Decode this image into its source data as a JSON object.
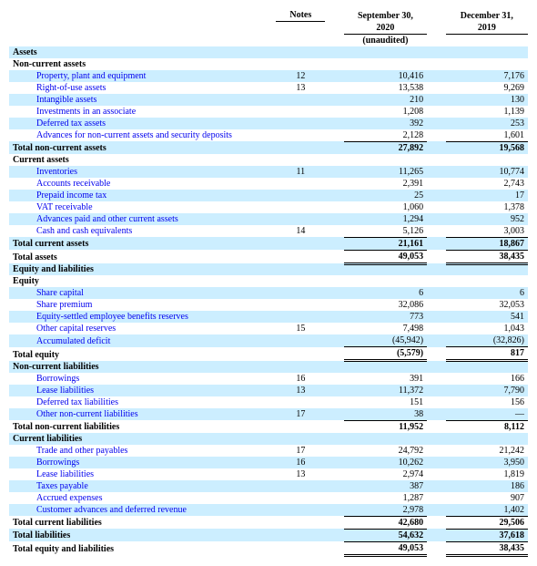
{
  "headers": {
    "notes": "Notes",
    "col1_l1": "September 30,",
    "col1_l2": "2020",
    "col1_l3": "(unaudited)",
    "col2_l1": "December 31,",
    "col2_l2": "2019"
  },
  "rows": [
    {
      "type": "section",
      "band": true,
      "label": "Assets"
    },
    {
      "type": "section",
      "label": "Non-current assets"
    },
    {
      "type": "line",
      "band": true,
      "indent": 2,
      "label": "Property, plant and equipment",
      "note": "12",
      "v1": "10,416",
      "v2": "7,176",
      "link": true
    },
    {
      "type": "line",
      "indent": 2,
      "label": "Right-of-use assets",
      "note": "13",
      "v1": "13,538",
      "v2": "9,269",
      "link": true
    },
    {
      "type": "line",
      "band": true,
      "indent": 2,
      "label": "Intangible assets",
      "v1": "210",
      "v2": "130",
      "link": true
    },
    {
      "type": "line",
      "indent": 2,
      "label": "Investments in an associate",
      "v1": "1,208",
      "v2": "1,139",
      "link": true
    },
    {
      "type": "line",
      "band": true,
      "indent": 2,
      "label": "Deferred tax assets",
      "v1": "392",
      "v2": "253",
      "link": true
    },
    {
      "type": "line",
      "indent": 2,
      "label": "Advances for non-current assets and security deposits",
      "v1": "2,128",
      "v2": "1,601",
      "link": true
    },
    {
      "type": "total",
      "band": true,
      "bold": true,
      "label": "Total non-current assets",
      "v1": "27,892",
      "v2": "19,568"
    },
    {
      "type": "section",
      "label": "Current assets"
    },
    {
      "type": "line",
      "band": true,
      "indent": 2,
      "label": "Inventories",
      "note": "11",
      "v1": "11,265",
      "v2": "10,774",
      "link": true
    },
    {
      "type": "line",
      "indent": 2,
      "label": "Accounts receivable",
      "v1": "2,391",
      "v2": "2,743",
      "link": true
    },
    {
      "type": "line",
      "band": true,
      "indent": 2,
      "label": "Prepaid income tax",
      "v1": "25",
      "v2": "17",
      "link": true
    },
    {
      "type": "line",
      "indent": 2,
      "label": "VAT receivable",
      "v1": "1,060",
      "v2": "1,378",
      "link": true
    },
    {
      "type": "line",
      "band": true,
      "indent": 2,
      "label": "Advances paid and other current assets",
      "v1": "1,294",
      "v2": "952",
      "link": true
    },
    {
      "type": "line",
      "indent": 2,
      "label": "Cash and cash equivalents",
      "note": "14",
      "v1": "5,126",
      "v2": "3,003",
      "link": true
    },
    {
      "type": "total",
      "band": true,
      "bold": true,
      "label": "Total current assets",
      "v1": "21,161",
      "v2": "18,867"
    },
    {
      "type": "total",
      "bold": true,
      "dbl": true,
      "label": "Total assets",
      "v1": "49,053",
      "v2": "38,435"
    },
    {
      "type": "section",
      "band": true,
      "label": "Equity and liabilities"
    },
    {
      "type": "section",
      "label": "Equity"
    },
    {
      "type": "line",
      "band": true,
      "indent": 2,
      "label": "Share capital",
      "v1": "6",
      "v2": "6",
      "link": true
    },
    {
      "type": "line",
      "indent": 2,
      "label": "Share premium",
      "v1": "32,086",
      "v2": "32,053",
      "link": true
    },
    {
      "type": "line",
      "band": true,
      "indent": 2,
      "label": "Equity-settled employee benefits reserves",
      "v1": "773",
      "v2": "541",
      "link": true
    },
    {
      "type": "line",
      "indent": 2,
      "label": "Other capital reserves",
      "note": "15",
      "v1": "7,498",
      "v2": "1,043",
      "link": true
    },
    {
      "type": "line",
      "band": true,
      "indent": 2,
      "label": "Accumulated deficit",
      "v1": "(45,942)",
      "v2": "(32,826)",
      "link": true
    },
    {
      "type": "total",
      "bold": true,
      "dbl": true,
      "label": "Total equity",
      "v1": "(5,579)",
      "v2": "817"
    },
    {
      "type": "section",
      "band": true,
      "label": "Non-current liabilities"
    },
    {
      "type": "line",
      "indent": 2,
      "label": "Borrowings",
      "note": "16",
      "v1": "391",
      "v2": "166",
      "link": true
    },
    {
      "type": "line",
      "band": true,
      "indent": 2,
      "label": "Lease liabilities",
      "note": "13",
      "v1": "11,372",
      "v2": "7,790",
      "link": true
    },
    {
      "type": "line",
      "indent": 2,
      "label": "Deferred tax liabilities",
      "v1": "151",
      "v2": "156",
      "link": true
    },
    {
      "type": "line",
      "band": true,
      "indent": 2,
      "label": "Other non-current liabilities",
      "note": "17",
      "v1": "38",
      "v2": "—",
      "link": true
    },
    {
      "type": "total",
      "bold": true,
      "label": "Total non-current liabilities",
      "v1": "11,952",
      "v2": "8,112"
    },
    {
      "type": "section",
      "band": true,
      "label": "Current liabilities"
    },
    {
      "type": "line",
      "indent": 2,
      "label": "Trade and other payables",
      "note": "17",
      "v1": "24,792",
      "v2": "21,242",
      "link": true
    },
    {
      "type": "line",
      "band": true,
      "indent": 2,
      "label": "Borrowings",
      "note": "16",
      "v1": "10,262",
      "v2": "3,950",
      "link": true
    },
    {
      "type": "line",
      "indent": 2,
      "label": "Lease liabilities",
      "note": "13",
      "v1": "2,974",
      "v2": "1,819",
      "link": true
    },
    {
      "type": "line",
      "band": true,
      "indent": 2,
      "label": "Taxes payable",
      "v1": "387",
      "v2": "186",
      "link": true
    },
    {
      "type": "line",
      "indent": 2,
      "label": "Accrued expenses",
      "v1": "1,287",
      "v2": "907",
      "link": true
    },
    {
      "type": "line",
      "band": true,
      "indent": 2,
      "label": "Customer advances and deferred revenue",
      "v1": "2,978",
      "v2": "1,402",
      "link": true
    },
    {
      "type": "total",
      "bold": true,
      "label": "Total current liabilities",
      "v1": "42,680",
      "v2": "29,506"
    },
    {
      "type": "total",
      "band": true,
      "bold": true,
      "label": "Total liabilities",
      "v1": "54,632",
      "v2": "37,618"
    },
    {
      "type": "total",
      "bold": true,
      "dbl": true,
      "label": "Total equity and liabilities",
      "v1": "49,053",
      "v2": "38,435"
    }
  ]
}
